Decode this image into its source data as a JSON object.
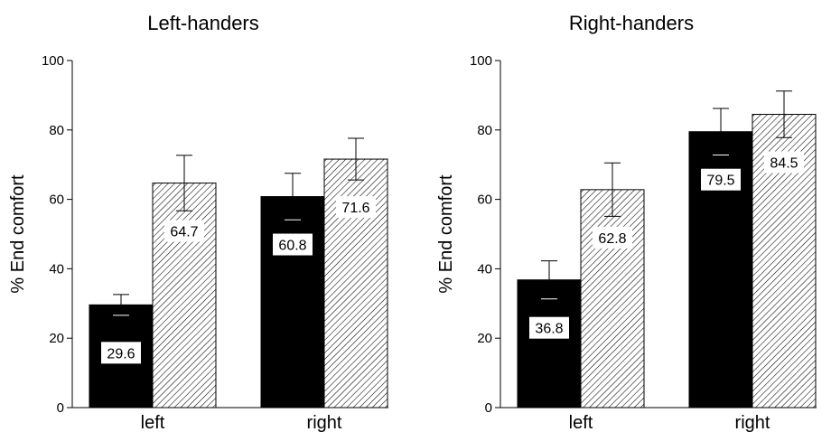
{
  "chart_data": [
    {
      "type": "bar",
      "title": "Left-handers",
      "ylabel": "% End comfort",
      "xlabel": "",
      "ylim": [
        0,
        100
      ],
      "yticks": [
        0,
        20,
        40,
        60,
        80,
        100
      ],
      "categories": [
        "left",
        "right"
      ],
      "series": [
        {
          "values": [
            29.6,
            60.8
          ],
          "errors": [
            3.0,
            6.7
          ],
          "fill": "solid",
          "color": "#000000"
        },
        {
          "values": [
            64.7,
            71.6
          ],
          "errors": [
            8.0,
            6.0
          ],
          "fill": "hatched",
          "color": "#000000"
        }
      ],
      "data_labels": [
        [
          "29.6",
          "60.8"
        ],
        [
          "64.7",
          "71.6"
        ]
      ],
      "grid": false,
      "legend": "none"
    },
    {
      "type": "bar",
      "title": "Right-handers",
      "ylabel": "% End comfort",
      "xlabel": "",
      "ylim": [
        0,
        100
      ],
      "yticks": [
        0,
        20,
        40,
        60,
        80,
        100
      ],
      "categories": [
        "left",
        "right"
      ],
      "series": [
        {
          "values": [
            36.8,
            79.5
          ],
          "errors": [
            5.5,
            6.7
          ],
          "fill": "solid",
          "color": "#000000"
        },
        {
          "values": [
            62.8,
            84.5
          ],
          "errors": [
            7.7,
            6.7
          ],
          "fill": "hatched",
          "color": "#000000"
        }
      ],
      "data_labels": [
        [
          "36.8",
          "79.5"
        ],
        [
          "62.8",
          "84.5"
        ]
      ],
      "grid": false,
      "legend": "none"
    }
  ]
}
